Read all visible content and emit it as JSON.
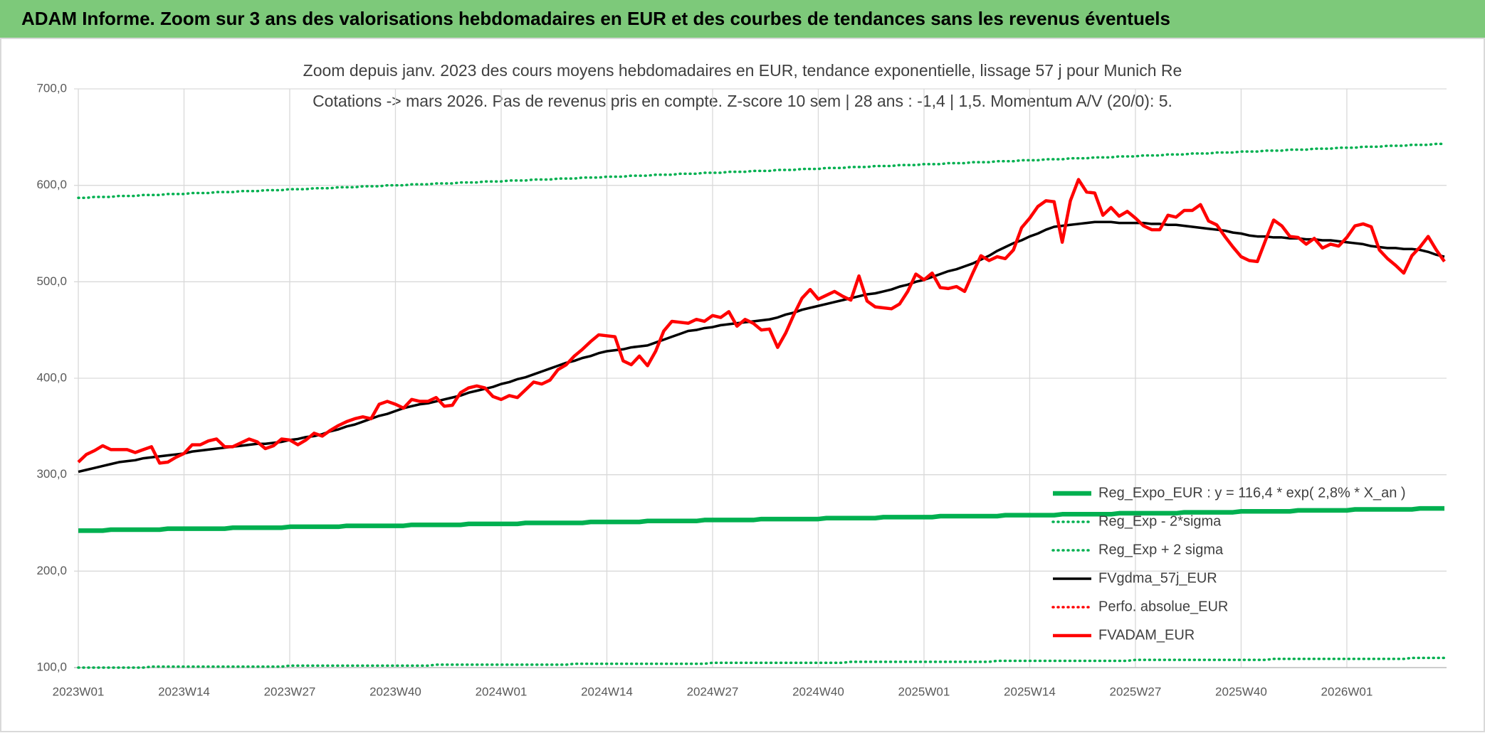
{
  "chart_data": {
    "type": "line",
    "title": "ADAM Informe. Zoom sur 3 ans des valorisations hebdomadaires en EUR et des courbes de tendances sans les revenus éventuels",
    "subtitle": [
      "Zoom depuis janv. 2023 des cours moyens hebdomadaires en EUR, tendance exponentielle, lissage 57 j pour Munich Re",
      "Cotations -> mars 2026. Pas de revenus pris en compte. Z-score 10 sem | 28 ans : -1,4 | 1,5. Momentum A/V (20/0): 5."
    ],
    "grid": true,
    "legend": "lower right",
    "ylim": [
      100,
      700
    ],
    "yticks": [
      {
        "value": 100,
        "label": "100,0"
      },
      {
        "value": 200,
        "label": "200,0"
      },
      {
        "value": 300,
        "label": "300,0"
      },
      {
        "value": 400,
        "label": "400,0"
      },
      {
        "value": 500,
        "label": "500,0"
      },
      {
        "value": 600,
        "label": "600,0"
      },
      {
        "value": 700,
        "label": "700,0"
      }
    ],
    "categories": [
      "2023W01",
      null,
      null,
      null,
      null,
      null,
      null,
      null,
      null,
      null,
      null,
      null,
      null,
      "2023W14",
      null,
      null,
      null,
      null,
      null,
      null,
      null,
      null,
      null,
      null,
      null,
      null,
      "2023W27",
      null,
      null,
      null,
      null,
      null,
      null,
      null,
      null,
      null,
      null,
      null,
      null,
      "2023W40",
      null,
      null,
      null,
      null,
      null,
      null,
      null,
      null,
      null,
      null,
      null,
      null,
      "2024W01",
      null,
      null,
      null,
      null,
      null,
      null,
      null,
      null,
      null,
      null,
      null,
      null,
      "2024W14",
      null,
      null,
      null,
      null,
      null,
      null,
      null,
      null,
      null,
      null,
      null,
      null,
      "2024W27",
      null,
      null,
      null,
      null,
      null,
      null,
      null,
      null,
      null,
      null,
      null,
      null,
      "2024W40",
      null,
      null,
      null,
      null,
      null,
      null,
      null,
      null,
      null,
      null,
      null,
      null,
      "2025W01",
      null,
      null,
      null,
      null,
      null,
      null,
      null,
      null,
      null,
      null,
      null,
      null,
      "2025W14",
      null,
      null,
      null,
      null,
      null,
      null,
      null,
      null,
      null,
      null,
      null,
      null,
      "2025W27",
      null,
      null,
      null,
      null,
      null,
      null,
      null,
      null,
      null,
      null,
      null,
      null,
      "2025W40",
      null,
      null,
      null,
      null,
      null,
      null,
      null,
      null,
      null,
      null,
      null,
      null,
      "2026W01",
      null,
      null,
      null,
      null,
      null,
      null,
      null,
      null,
      null,
      null,
      null,
      null
    ],
    "series": [
      {
        "name": "Reg_Expo_EUR : y = 116,4 * exp( 2,8% *  X_an )",
        "color": "#00b050",
        "style": "solid",
        "values": [
          242,
          242,
          242,
          242,
          243,
          243,
          243,
          243,
          243,
          243,
          243,
          244,
          244,
          244,
          244,
          244,
          244,
          244,
          244,
          245,
          245,
          245,
          245,
          245,
          245,
          245,
          246,
          246,
          246,
          246,
          246,
          246,
          246,
          247,
          247,
          247,
          247,
          247,
          247,
          247,
          247,
          248,
          248,
          248,
          248,
          248,
          248,
          248,
          249,
          249,
          249,
          249,
          249,
          249,
          249,
          250,
          250,
          250,
          250,
          250,
          250,
          250,
          250,
          251,
          251,
          251,
          251,
          251,
          251,
          251,
          252,
          252,
          252,
          252,
          252,
          252,
          252,
          253,
          253,
          253,
          253,
          253,
          253,
          253,
          254,
          254,
          254,
          254,
          254,
          254,
          254,
          254,
          255,
          255,
          255,
          255,
          255,
          255,
          255,
          256,
          256,
          256,
          256,
          256,
          256,
          256,
          257,
          257,
          257,
          257,
          257,
          257,
          257,
          257,
          258,
          258,
          258,
          258,
          258,
          258,
          258,
          259,
          259,
          259,
          259,
          259,
          259,
          259,
          260,
          260,
          260,
          260,
          260,
          260,
          260,
          260,
          261,
          261,
          261,
          261,
          261,
          261,
          261,
          262,
          262,
          262,
          262,
          262,
          262,
          262,
          263,
          263,
          263,
          263,
          263,
          263,
          263,
          264,
          264,
          264,
          264,
          264,
          264,
          264,
          264,
          265,
          265,
          265,
          265
        ]
      },
      {
        "name": "Reg_Exp - 2*sigma",
        "color": "#00b050",
        "style": "dotted",
        "values": [
          100,
          100,
          100,
          100,
          100,
          100,
          100,
          100,
          100,
          101,
          101,
          101,
          101,
          101,
          101,
          101,
          101,
          101,
          101,
          101,
          101,
          101,
          101,
          101,
          101,
          101,
          102,
          102,
          102,
          102,
          102,
          102,
          102,
          102,
          102,
          102,
          102,
          102,
          102,
          102,
          102,
          102,
          102,
          102,
          103,
          103,
          103,
          103,
          103,
          103,
          103,
          103,
          103,
          103,
          103,
          103,
          103,
          103,
          103,
          103,
          103,
          104,
          104,
          104,
          104,
          104,
          104,
          104,
          104,
          104,
          104,
          104,
          104,
          104,
          104,
          104,
          104,
          104,
          105,
          105,
          105,
          105,
          105,
          105,
          105,
          105,
          105,
          105,
          105,
          105,
          105,
          105,
          105,
          105,
          105,
          106,
          106,
          106,
          106,
          106,
          106,
          106,
          106,
          106,
          106,
          106,
          106,
          106,
          106,
          106,
          106,
          106,
          106,
          107,
          107,
          107,
          107,
          107,
          107,
          107,
          107,
          107,
          107,
          107,
          107,
          107,
          107,
          107,
          107,
          107,
          108,
          108,
          108,
          108,
          108,
          108,
          108,
          108,
          108,
          108,
          108,
          108,
          108,
          108,
          108,
          108,
          108,
          109,
          109,
          109,
          109,
          109,
          109,
          109,
          109,
          109,
          109,
          109,
          109,
          109,
          109,
          109,
          109,
          109,
          110,
          110,
          110,
          110,
          110
        ]
      },
      {
        "name": "Reg_Exp + 2 sigma",
        "color": "#00b050",
        "style": "dotted",
        "values": [
          587,
          587,
          588,
          588,
          588,
          589,
          589,
          589,
          590,
          590,
          590,
          591,
          591,
          591,
          592,
          592,
          592,
          593,
          593,
          593,
          594,
          594,
          594,
          595,
          595,
          595,
          596,
          596,
          596,
          597,
          597,
          597,
          598,
          598,
          598,
          599,
          599,
          599,
          600,
          600,
          600,
          601,
          601,
          601,
          602,
          602,
          602,
          603,
          603,
          603,
          604,
          604,
          604,
          605,
          605,
          605,
          606,
          606,
          606,
          607,
          607,
          607,
          608,
          608,
          608,
          609,
          609,
          609,
          610,
          610,
          610,
          611,
          611,
          611,
          612,
          612,
          612,
          613,
          613,
          613,
          614,
          614,
          614,
          615,
          615,
          615,
          616,
          616,
          616,
          617,
          617,
          617,
          618,
          618,
          618,
          619,
          619,
          619,
          620,
          620,
          620,
          621,
          621,
          621,
          622,
          622,
          622,
          623,
          623,
          623,
          624,
          624,
          624,
          625,
          625,
          625,
          626,
          626,
          626,
          627,
          627,
          627,
          628,
          628,
          628,
          629,
          629,
          629,
          630,
          630,
          630,
          631,
          631,
          631,
          632,
          632,
          632,
          633,
          633,
          633,
          634,
          634,
          634,
          635,
          635,
          635,
          636,
          636,
          636,
          637,
          637,
          637,
          638,
          638,
          638,
          639,
          639,
          639,
          640,
          640,
          640,
          641,
          641,
          641,
          642,
          642,
          642,
          643,
          643
        ]
      },
      {
        "name": "FVgdma_57j_EUR",
        "color": "#000000",
        "style": "solid",
        "values": [
          303,
          305,
          307,
          309,
          311,
          313,
          314,
          315,
          317,
          318,
          319,
          320,
          321,
          322,
          324,
          325,
          326,
          327,
          328,
          329,
          330,
          331,
          332,
          332,
          333,
          334,
          336,
          337,
          339,
          340,
          342,
          345,
          347,
          350,
          352,
          355,
          358,
          361,
          363,
          366,
          369,
          371,
          373,
          374,
          376,
          378,
          380,
          382,
          385,
          387,
          389,
          391,
          394,
          396,
          399,
          401,
          404,
          407,
          410,
          413,
          416,
          418,
          421,
          423,
          426,
          428,
          429,
          430,
          432,
          433,
          434,
          437,
          440,
          443,
          446,
          449,
          450,
          452,
          453,
          455,
          456,
          457,
          458,
          459,
          460,
          461,
          463,
          466,
          468,
          471,
          473,
          475,
          477,
          479,
          481,
          483,
          485,
          487,
          488,
          490,
          492,
          495,
          497,
          500,
          502,
          505,
          508,
          511,
          513,
          516,
          519,
          523,
          527,
          532,
          536,
          540,
          543,
          547,
          550,
          554,
          557,
          558,
          559,
          560,
          561,
          562,
          562,
          562,
          561,
          561,
          561,
          561,
          560,
          560,
          559,
          559,
          558,
          557,
          556,
          555,
          554,
          553,
          551,
          550,
          548,
          547,
          547,
          546,
          546,
          545,
          545,
          544,
          544,
          543,
          543,
          542,
          541,
          540,
          539,
          537,
          536,
          535,
          535,
          534,
          534,
          533,
          531,
          528,
          526
        ]
      },
      {
        "name": "Perfo. absolue_EUR",
        "color": "#ff0000",
        "style": "dotted",
        "values": [
          null,
          null,
          null,
          null,
          null,
          null,
          null,
          null,
          null,
          null,
          null,
          null,
          null,
          null,
          null,
          null,
          null,
          null,
          null,
          null,
          null,
          null,
          null,
          null,
          null,
          null,
          null,
          null,
          null,
          null,
          null,
          null,
          null,
          null,
          null,
          null,
          null,
          null,
          null,
          null,
          null,
          null,
          null,
          null,
          null,
          null,
          null,
          null,
          null,
          null,
          null,
          null,
          null,
          null,
          null,
          null,
          null,
          null,
          null,
          null,
          null,
          null,
          null,
          null,
          null,
          null,
          null,
          null,
          null,
          null,
          null,
          null,
          null,
          null,
          null,
          null,
          null,
          null,
          null,
          null,
          null,
          null,
          null,
          null,
          null,
          null,
          null,
          null,
          null,
          null,
          null,
          null,
          null,
          null,
          null,
          null,
          null,
          null,
          null,
          null,
          null,
          null,
          null,
          null,
          null,
          null,
          null,
          null,
          null,
          null,
          null,
          null,
          null,
          null,
          null,
          null,
          null,
          null,
          null,
          null,
          null,
          null,
          null,
          null,
          null,
          null,
          null,
          null,
          null,
          null,
          null,
          null,
          null,
          null,
          null,
          null,
          null,
          null,
          null,
          null,
          null,
          null,
          null,
          null,
          null,
          null,
          null,
          null,
          null,
          null,
          null,
          null,
          null,
          null,
          null,
          null,
          null,
          null,
          null,
          null,
          null,
          null,
          null,
          null,
          null,
          null,
          null,
          null,
          null
        ]
      },
      {
        "name": "FVADAM_EUR",
        "color": "#ff0000",
        "style": "solid",
        "values": [
          313,
          321,
          325,
          330,
          326,
          326,
          326,
          323,
          326,
          329,
          312,
          313,
          318,
          322,
          331,
          331,
          335,
          337,
          329,
          329,
          333,
          337,
          334,
          327,
          330,
          337,
          336,
          331,
          336,
          343,
          340,
          346,
          351,
          355,
          358,
          360,
          358,
          373,
          376,
          373,
          369,
          378,
          376,
          376,
          380,
          371,
          372,
          385,
          390,
          392,
          390,
          381,
          378,
          382,
          380,
          388,
          396,
          394,
          398,
          409,
          414,
          423,
          430,
          438,
          445,
          444,
          443,
          418,
          414,
          423,
          413,
          428,
          449,
          459,
          458,
          457,
          461,
          459,
          465,
          463,
          469,
          454,
          461,
          457,
          450,
          451,
          432,
          447,
          466,
          483,
          492,
          482,
          486,
          490,
          485,
          481,
          506,
          480,
          474,
          473,
          472,
          477,
          490,
          508,
          502,
          509,
          494,
          493,
          495,
          490,
          509,
          527,
          522,
          526,
          524,
          533,
          556,
          566,
          578,
          584,
          583,
          541,
          584,
          606,
          593,
          592,
          569,
          577,
          568,
          573,
          566,
          558,
          554,
          554,
          569,
          567,
          574,
          574,
          580,
          563,
          559,
          547,
          536,
          526,
          522,
          521,
          543,
          564,
          558,
          547,
          546,
          539,
          545,
          535,
          539,
          537,
          546,
          558,
          560,
          557,
          533,
          524,
          517,
          509,
          527,
          536,
          547,
          533,
          521
        ]
      }
    ]
  }
}
